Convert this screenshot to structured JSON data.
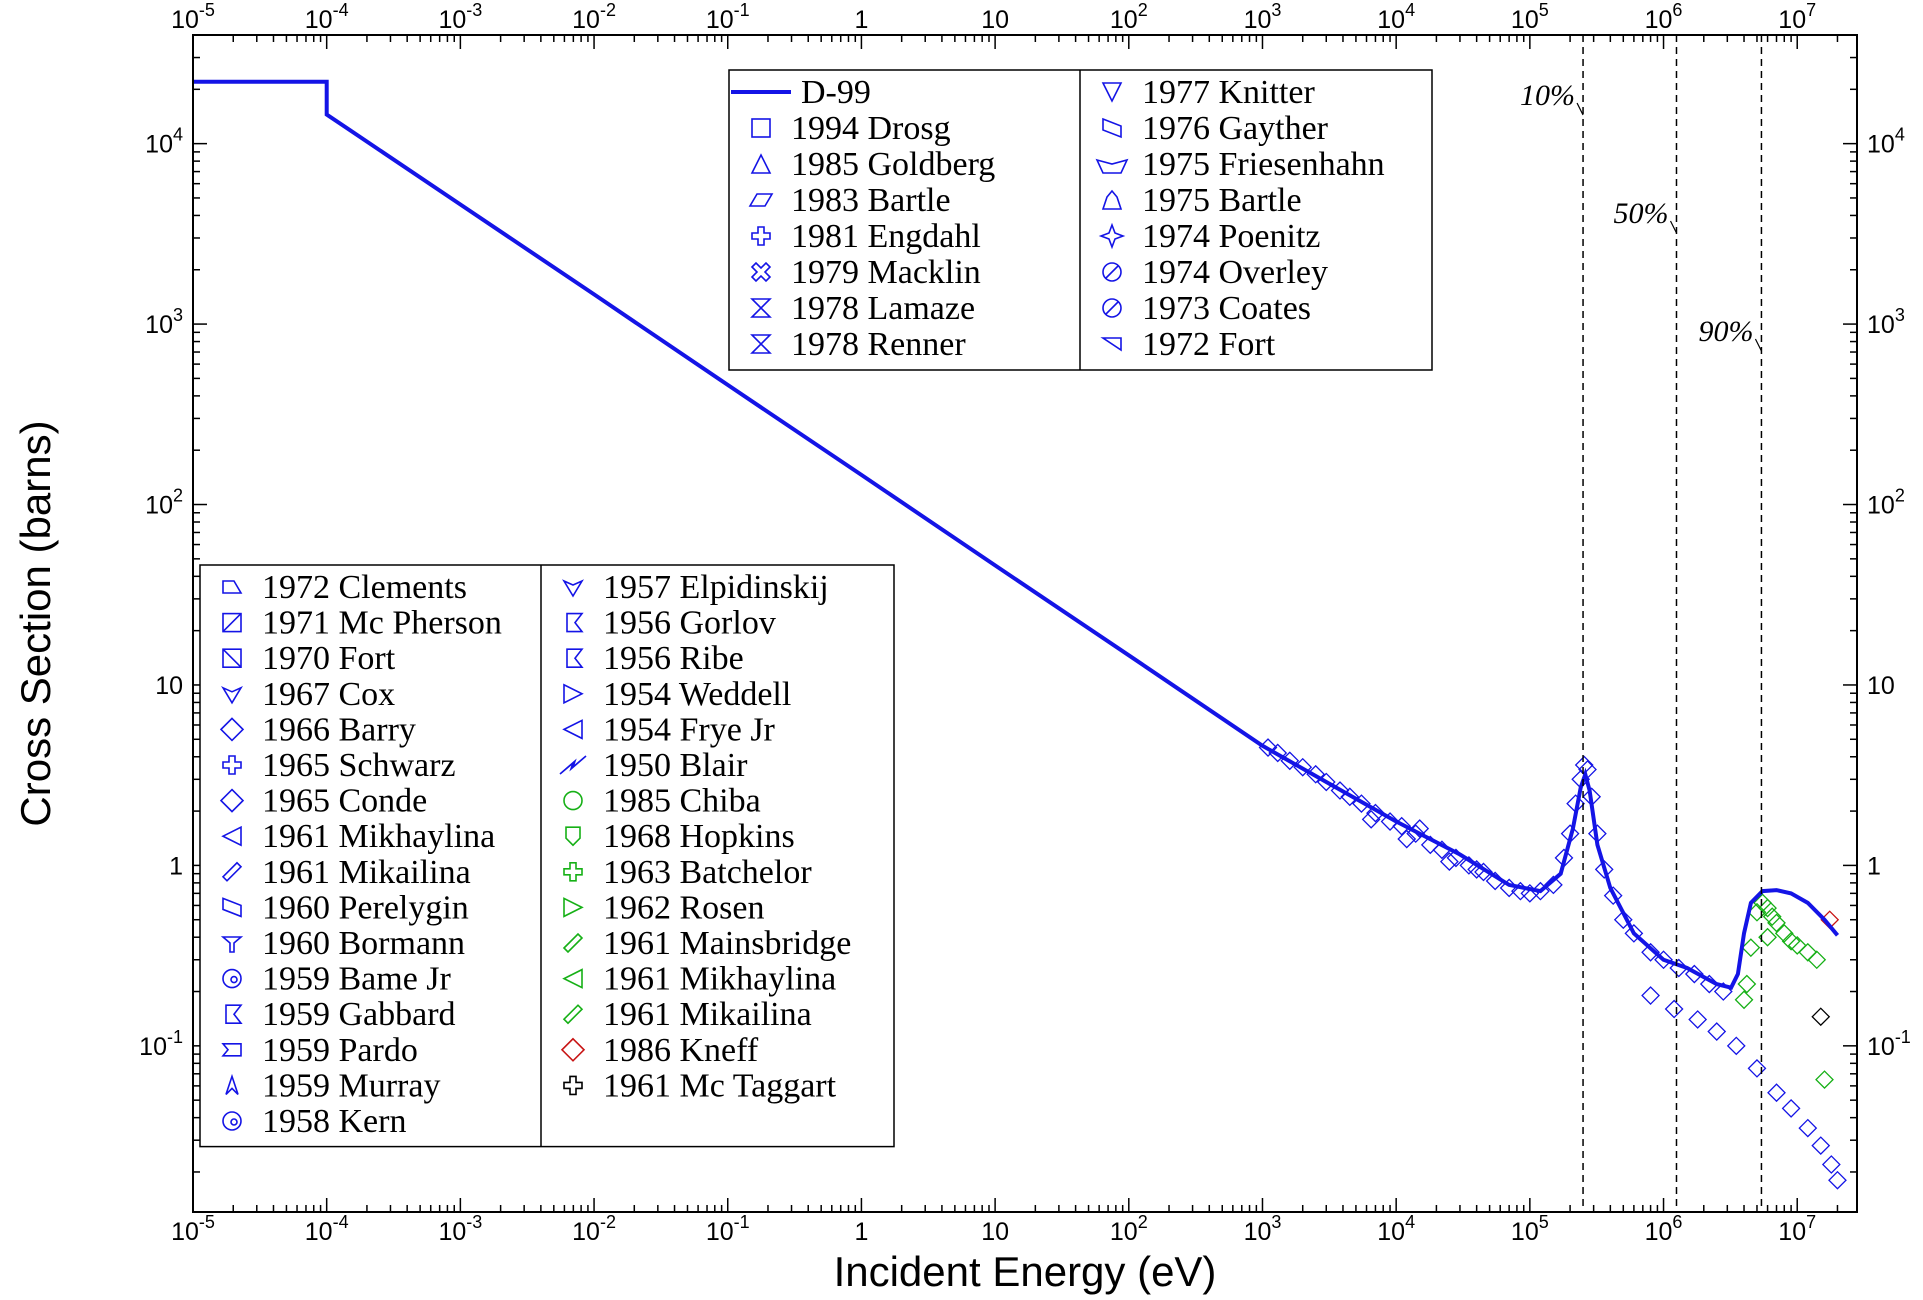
{
  "chart_data": {
    "type": "line",
    "title": "",
    "xlabel": "Incident Energy  (eV)",
    "ylabel": "Cross Section  (barns)",
    "x_scale": "log",
    "y_scale": "log",
    "xlim": [
      1e-05,
      28000000.0
    ],
    "ylim": [
      0.012,
      40000
    ],
    "grid": false,
    "x_ticks": [
      {
        "v": 1e-05,
        "base": "10",
        "exp": "-5"
      },
      {
        "v": 0.0001,
        "base": "10",
        "exp": "-4"
      },
      {
        "v": 0.001,
        "base": "10",
        "exp": "-3"
      },
      {
        "v": 0.01,
        "base": "10",
        "exp": "-2"
      },
      {
        "v": 0.1,
        "base": "10",
        "exp": "-1"
      },
      {
        "v": 1,
        "base": "1",
        "exp": ""
      },
      {
        "v": 10,
        "base": "10",
        "exp": ""
      },
      {
        "v": 100,
        "base": "10",
        "exp": "2"
      },
      {
        "v": 1000,
        "base": "10",
        "exp": "3"
      },
      {
        "v": 10000,
        "base": "10",
        "exp": "4"
      },
      {
        "v": 100000,
        "base": "10",
        "exp": "5"
      },
      {
        "v": 1000000,
        "base": "10",
        "exp": "6"
      },
      {
        "v": 10000000,
        "base": "10",
        "exp": "7"
      }
    ],
    "y_ticks": [
      {
        "v": 0.1,
        "base": "10",
        "exp": "-1"
      },
      {
        "v": 1,
        "base": "1",
        "exp": ""
      },
      {
        "v": 10,
        "base": "10",
        "exp": ""
      },
      {
        "v": 100,
        "base": "10",
        "exp": "2"
      },
      {
        "v": 1000,
        "base": "10",
        "exp": "3"
      },
      {
        "v": 10000,
        "base": "10",
        "exp": "4"
      }
    ],
    "series": [
      {
        "name": "D-99",
        "color": "#1414e6",
        "points": [
          [
            1e-05,
            22000
          ],
          [
            0.0001,
            22000
          ],
          [
            0.0001,
            14500
          ],
          [
            0.001,
            4600
          ],
          [
            0.01,
            1460
          ],
          [
            0.1,
            460
          ],
          [
            1,
            146
          ],
          [
            10,
            46
          ],
          [
            100,
            14.6
          ],
          [
            1000,
            4.6
          ],
          [
            3000,
            2.9
          ],
          [
            10000,
            1.75
          ],
          [
            30000,
            1.15
          ],
          [
            70000,
            0.78
          ],
          [
            120000,
            0.72
          ],
          [
            170000,
            0.9
          ],
          [
            210000,
            1.6
          ],
          [
            240000,
            2.7
          ],
          [
            260000,
            3.2
          ],
          [
            280000,
            2.6
          ],
          [
            320000,
            1.3
          ],
          [
            400000,
            0.75
          ],
          [
            600000,
            0.42
          ],
          [
            1000000,
            0.3
          ],
          [
            1500000,
            0.27
          ],
          [
            2500000,
            0.22
          ],
          [
            3200000,
            0.21
          ],
          [
            3600000,
            0.25
          ],
          [
            4000000,
            0.42
          ],
          [
            4500000,
            0.62
          ],
          [
            5500000,
            0.72
          ],
          [
            7000000,
            0.73
          ],
          [
            9000000,
            0.7
          ],
          [
            12000000,
            0.62
          ],
          [
            16000000,
            0.5
          ],
          [
            20000000,
            0.41
          ]
        ]
      }
    ],
    "vertical_markers": [
      {
        "x": 250000,
        "label": "10%"
      },
      {
        "x": 1250000,
        "label": "50%"
      },
      {
        "x": 5400000,
        "label": "90%"
      }
    ],
    "legend_top": {
      "col1": [
        {
          "label": "D-99",
          "marker": "line"
        },
        {
          "label": "1994 Drosg",
          "marker": "square"
        },
        {
          "label": "1985 Goldberg",
          "marker": "triangle-up"
        },
        {
          "label": "1983 Bartle",
          "marker": "parallelogram"
        },
        {
          "label": "1981 Engdahl",
          "marker": "plus"
        },
        {
          "label": "1979 Macklin",
          "marker": "x-cross"
        },
        {
          "label": "1978 Lamaze",
          "marker": "hourglass"
        },
        {
          "label": "1978 Renner",
          "marker": "bowtie"
        }
      ],
      "col2": [
        {
          "label": "1977 Knitter",
          "marker": "triangle-down"
        },
        {
          "label": "1976 Gayther",
          "marker": "slanted"
        },
        {
          "label": "1975 Friesenhahn",
          "marker": "pentagon-down"
        },
        {
          "label": "1975 Bartle",
          "marker": "stack"
        },
        {
          "label": "1974 Poenitz",
          "marker": "star4"
        },
        {
          "label": "1974 Overley",
          "marker": "circle-slash"
        },
        {
          "label": "1973 Coates",
          "marker": "circle-slash"
        },
        {
          "label": "1972 Fort",
          "marker": "wedge-left"
        }
      ]
    },
    "legend_bottom": {
      "col1": [
        {
          "label": "1972 Clements",
          "marker": "trapezoid"
        },
        {
          "label": "1971 Mc Pherson",
          "marker": "square-slash"
        },
        {
          "label": "1970 Fort",
          "marker": "square-x"
        },
        {
          "label": "1967 Cox",
          "marker": "heart-down"
        },
        {
          "label": "1966 Barry",
          "marker": "diamond-double"
        },
        {
          "label": "1965 Schwarz",
          "marker": "tee"
        },
        {
          "label": "1965 Conde",
          "marker": "diamond-double"
        },
        {
          "label": "1961 Mikhaylina",
          "marker": "triangle-left"
        },
        {
          "label": "1961 Mikailina",
          "marker": "diag-bar"
        },
        {
          "label": "1960 Perelygin",
          "marker": "slanted"
        },
        {
          "label": "1960 Bormann",
          "marker": "funnel"
        },
        {
          "label": "1959 Bame Jr",
          "marker": "spiral"
        },
        {
          "label": "1959 Gabbard",
          "marker": "flag"
        },
        {
          "label": "1959 Pardo",
          "marker": "notch"
        },
        {
          "label": "1959 Murray",
          "marker": "chevron"
        },
        {
          "label": "1958 Kern",
          "marker": "spiral"
        }
      ],
      "col2": [
        {
          "label": "1957 Elpidinskij",
          "marker": "heart-down",
          "color": "#1414e6"
        },
        {
          "label": "1956 Gorlov",
          "marker": "flag",
          "color": "#1414e6"
        },
        {
          "label": "1956 Ribe",
          "marker": "flag",
          "color": "#1414e6"
        },
        {
          "label": "1954 Weddell",
          "marker": "triangle-right",
          "color": "#1414e6"
        },
        {
          "label": "1954 Frye Jr",
          "marker": "triangle-left",
          "color": "#1414e6"
        },
        {
          "label": "1950 Blair",
          "marker": "bolt",
          "color": "#1414e6"
        },
        {
          "label": "1985 Chiba",
          "marker": "circle",
          "color": "#16b016"
        },
        {
          "label": "1968 Hopkins",
          "marker": "shield",
          "color": "#16b016"
        },
        {
          "label": "1963 Batchelor",
          "marker": "tee",
          "color": "#16b016"
        },
        {
          "label": "1962 Rosen",
          "marker": "triangle-right",
          "color": "#16b016"
        },
        {
          "label": "1961 Mainsbridge",
          "marker": "diag-bar",
          "color": "#16b016"
        },
        {
          "label": "1961 Mikhaylina",
          "marker": "triangle-left",
          "color": "#16b016"
        },
        {
          "label": "1961 Mikailina",
          "marker": "diag-bar",
          "color": "#16b016"
        },
        {
          "label": "1986 Kneff",
          "marker": "diamond",
          "color": "#c81414"
        },
        {
          "label": "1961 Mc Taggart",
          "marker": "tee-up",
          "color": "#000000"
        }
      ]
    },
    "scatter_groups": [
      {
        "color": "#1414e6",
        "points": [
          [
            1100,
            4.5
          ],
          [
            1300,
            4.2
          ],
          [
            1600,
            3.8
          ],
          [
            2000,
            3.5
          ],
          [
            2500,
            3.2
          ],
          [
            3000,
            2.9
          ],
          [
            3800,
            2.6
          ],
          [
            4500,
            2.4
          ],
          [
            5500,
            2.2
          ],
          [
            7000,
            1.95
          ],
          [
            9000,
            1.75
          ],
          [
            11000,
            1.65
          ],
          [
            14000,
            1.5
          ],
          [
            18000,
            1.3
          ],
          [
            22000,
            1.22
          ],
          [
            28000,
            1.1
          ],
          [
            35000,
            1.0
          ],
          [
            45000,
            0.92
          ],
          [
            55000,
            0.82
          ],
          [
            70000,
            0.75
          ],
          [
            85000,
            0.72
          ],
          [
            100000,
            0.7
          ],
          [
            120000,
            0.72
          ],
          [
            150000,
            0.78
          ],
          [
            180000,
            1.1
          ],
          [
            200000,
            1.5
          ],
          [
            220000,
            2.2
          ],
          [
            240000,
            3.0
          ],
          [
            255000,
            3.6
          ],
          [
            270000,
            3.4
          ],
          [
            290000,
            2.4
          ],
          [
            320000,
            1.5
          ],
          [
            360000,
            0.95
          ],
          [
            420000,
            0.68
          ],
          [
            500000,
            0.5
          ],
          [
            600000,
            0.42
          ],
          [
            800000,
            0.33
          ],
          [
            1000000,
            0.3
          ],
          [
            1300000,
            0.27
          ],
          [
            1700000,
            0.25
          ],
          [
            2200000,
            0.22
          ],
          [
            2800000,
            0.2
          ],
          [
            800000,
            0.19
          ],
          [
            1200000,
            0.16
          ],
          [
            1800000,
            0.14
          ],
          [
            2500000,
            0.12
          ],
          [
            3500000,
            0.1
          ],
          [
            5000000,
            0.075
          ],
          [
            7000000,
            0.055
          ],
          [
            9000000,
            0.045
          ],
          [
            12000000,
            0.035
          ],
          [
            15000000,
            0.028
          ],
          [
            18000000,
            0.022
          ],
          [
            20000000,
            0.018
          ],
          [
            6500,
            1.8
          ],
          [
            12000,
            1.4
          ],
          [
            15000,
            1.6
          ],
          [
            25000,
            1.05
          ],
          [
            40000,
            0.95
          ]
        ]
      },
      {
        "color": "#16b016",
        "points": [
          [
            4000000,
            0.18
          ],
          [
            4500000,
            0.35
          ],
          [
            5000000,
            0.55
          ],
          [
            5500000,
            0.62
          ],
          [
            6000000,
            0.58
          ],
          [
            6500000,
            0.52
          ],
          [
            7000000,
            0.48
          ],
          [
            8000000,
            0.42
          ],
          [
            9000000,
            0.38
          ],
          [
            10000000,
            0.36
          ],
          [
            12000000,
            0.33
          ],
          [
            14000000,
            0.3
          ],
          [
            16000000,
            0.065
          ],
          [
            4200000,
            0.22
          ],
          [
            6000000,
            0.4
          ]
        ]
      },
      {
        "color": "#c81414",
        "points": [
          [
            17500000,
            0.5
          ]
        ]
      },
      {
        "color": "#000000",
        "points": [
          [
            15000000,
            0.145
          ]
        ]
      }
    ]
  }
}
